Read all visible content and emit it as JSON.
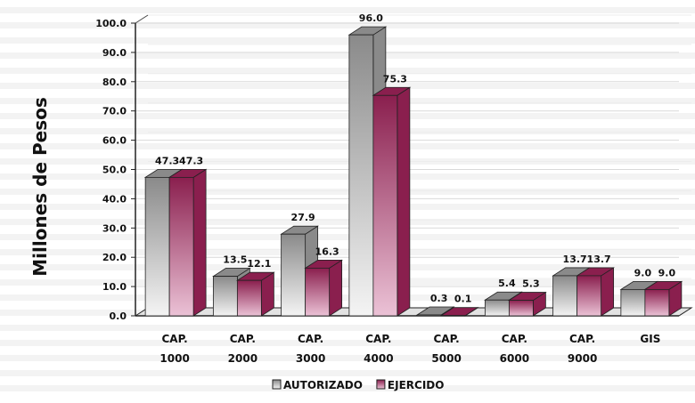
{
  "chart_data": {
    "type": "bar",
    "title": "",
    "xlabel": "",
    "ylabel": "Millones de Pesos",
    "ylim": [
      0,
      100
    ],
    "yticks": [
      "0.0",
      "10.0",
      "20.0",
      "30.0",
      "40.0",
      "50.0",
      "60.0",
      "70.0",
      "80.0",
      "90.0",
      "100.0"
    ],
    "grid": true,
    "legend_position": "bottom",
    "categories": [
      [
        "CAP.",
        "1000"
      ],
      [
        "CAP.",
        "2000"
      ],
      [
        "CAP.",
        "3000"
      ],
      [
        "CAP.",
        "4000"
      ],
      [
        "CAP.",
        "5000"
      ],
      [
        "CAP.",
        "6000"
      ],
      [
        "CAP.",
        "9000"
      ],
      [
        "GIS"
      ]
    ],
    "series": [
      {
        "name": "AUTORIZADO",
        "values": [
          47.3,
          13.5,
          27.9,
          96.0,
          0.3,
          5.4,
          13.7,
          9.0
        ],
        "labels": [
          "47.3",
          "13.5",
          "27.9",
          "96.0",
          "0.3",
          "5.4",
          "13.7",
          "9.0"
        ],
        "color_light": "#f4f4f4",
        "color_dark": "#8a8a8a"
      },
      {
        "name": "EJERCIDO",
        "values": [
          47.3,
          12.1,
          16.3,
          75.3,
          0.1,
          5.3,
          13.7,
          9.0
        ],
        "labels": [
          "47.3",
          "12.1",
          "16.3",
          "75.3",
          "0.1",
          "5.3",
          "13.7",
          "9.0"
        ],
        "color_light": "#ebc2d6",
        "color_dark": "#8a1f4e"
      }
    ]
  }
}
